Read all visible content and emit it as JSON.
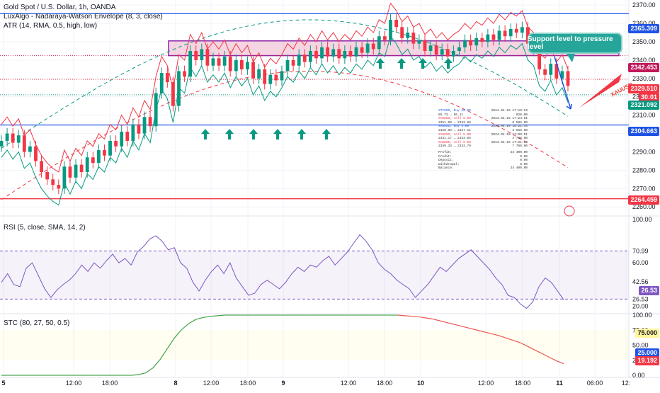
{
  "legend": {
    "title": "Gold Spot / U.S. Dollar, 1h, OANDA",
    "indicator1": "LuxAlgo - Nadaraya-Watson Envelope (8, 3, close)",
    "indicator2": "ATR (14, RMA, 0.5, high, low)",
    "rsi": "RSI (5, close, SMA, 14, 2)",
    "stc": "STC (80, 27, 50, 0.5)"
  },
  "annotation": {
    "callout": "Support level to pressure level",
    "symbol": "XAUUSD"
  },
  "price_tags": {
    "level_top": "2365.309",
    "current_upper": "2342.453",
    "current": "2329.510",
    "countdown": "30:01",
    "lower": "2321.092",
    "support": "2304.663",
    "bottom": "2264.459",
    "rsi_value": "26.53",
    "stc_75": "75.000",
    "stc_25": "25.000",
    "stc_value": "19.192"
  },
  "report": [
    [
      "XTIUSD, buy 20.00",
      "2024.04.10 17:19:23"
    ],
    [
      "85.73 → 86.11",
      "820.00"
    ],
    [
      "XAUUSD, sell 6.00",
      "2024.04.10 17:24:51"
    ],
    [
      "2351.00 → 2333.69",
      "8 505.00"
    ],
    [
      "XAUUSD, buy 5.00",
      "2024.04.10 18:21:44"
    ],
    [
      "2320.00 → 2327.11",
      "3 555.00"
    ],
    [
      "XAUUSD, sell 5.00",
      "2024.04.10 17:09:51"
    ],
    [
      "2341.17 → 2333.65",
      "3 760.00"
    ],
    [
      "XAUUSD, sell 5.00",
      "2024.04.10 17:21:04"
    ],
    [
      "2349.33 → 2333.79",
      "7 760.00"
    ],
    [
      "Profit:",
      "24 400.00"
    ],
    [
      "Credit:",
      "0.00"
    ],
    [
      "Deposit:",
      "0.00"
    ],
    [
      "Withdrawal:",
      "0.00"
    ],
    [
      "Balance:",
      "24 400.00"
    ]
  ],
  "chart_data": [
    {
      "type": "candlestick",
      "title": "Gold Spot / U.S. Dollar, 1h, OANDA",
      "ylim": [
        2257,
        2372
      ],
      "yticks": [
        2370,
        2360,
        2350,
        2340,
        2330,
        2320,
        2310,
        2300,
        2290,
        2280,
        2270,
        2260
      ],
      "xticks": [
        "5",
        "12:00",
        "18:00",
        "8",
        "12:00",
        "18:00",
        "9",
        "12:00",
        "18:00",
        "10",
        "12:00",
        "18:00",
        "11",
        "06:00",
        "12:"
      ],
      "colors": {
        "up": "#089981",
        "down": "#f23645",
        "envelope_band": "#f23645",
        "atr_band": "#089981",
        "line": "#1e53e5",
        "zone": "#c2185b"
      },
      "closes": [
        2296,
        2300,
        2295,
        2299,
        2290,
        2293,
        2285,
        2279,
        2275,
        2272,
        2270,
        2282,
        2276,
        2283,
        2279,
        2287,
        2284,
        2291,
        2288,
        2296,
        2293,
        2301,
        2296,
        2305,
        2300,
        2309,
        2304,
        2322,
        2333,
        2328,
        2315,
        2334,
        2331,
        2345,
        2340,
        2346,
        2337,
        2341,
        2337,
        2342,
        2334,
        2340,
        2335,
        2339,
        2330,
        2335,
        2327,
        2332,
        2329,
        2334,
        2340,
        2337,
        2343,
        2339,
        2345,
        2341,
        2347,
        2342,
        2346,
        2341,
        2345,
        2342,
        2347,
        2344,
        2349,
        2346,
        2353,
        2351,
        2362,
        2358,
        2352,
        2355,
        2349,
        2351,
        2345,
        2348,
        2343,
        2346,
        2342,
        2345,
        2347,
        2351,
        2348,
        2352,
        2350,
        2354,
        2351,
        2356,
        2353,
        2357,
        2355,
        2358,
        2349,
        2346,
        2335,
        2332,
        2338,
        2330,
        2334,
        2326
      ],
      "horizontal_levels": [
        2365.309,
        2304.663,
        2264.459
      ],
      "zone": [
        2342.453,
        2350.5
      ],
      "arrow_signals": "green up arrows under support and inside the zone"
    },
    {
      "type": "line",
      "name": "RSI",
      "ylim": [
        15,
        100
      ],
      "yticks": [
        100.0,
        70.99,
        60.0,
        42.56,
        26.53,
        20.0
      ],
      "bands": [
        70.99,
        26.53
      ],
      "values": [
        42,
        50,
        40,
        38,
        55,
        60,
        48,
        36,
        28,
        35,
        40,
        44,
        50,
        58,
        52,
        60,
        55,
        62,
        68,
        60,
        64,
        58,
        70,
        75,
        82,
        85,
        80,
        72,
        74,
        60,
        55,
        42,
        34,
        44,
        52,
        58,
        50,
        60,
        46,
        38,
        30,
        32,
        40,
        44,
        40,
        36,
        42,
        50,
        56,
        52,
        58,
        56,
        62,
        66,
        58,
        64,
        70,
        78,
        86,
        80,
        72,
        60,
        54,
        50,
        44,
        40,
        36,
        28,
        34,
        40,
        48,
        56,
        52,
        58,
        64,
        68,
        72,
        66,
        60,
        54,
        46,
        40,
        30,
        28,
        22,
        18,
        24,
        38,
        46,
        42,
        34,
        26
      ]
    },
    {
      "type": "line",
      "name": "STC",
      "ylim": [
        0,
        100
      ],
      "yticks": [
        100.0,
        75.0,
        50.0,
        25.0,
        0.0
      ],
      "values": [
        0,
        0,
        0,
        0,
        0,
        0,
        0,
        0,
        0,
        0,
        0,
        0,
        0,
        0,
        0,
        0,
        0,
        0,
        0,
        1,
        4,
        12,
        26,
        44,
        62,
        76,
        86,
        93,
        96,
        98,
        99,
        100,
        100,
        100,
        100,
        100,
        100,
        100,
        100,
        100,
        100,
        100,
        100,
        100,
        100,
        100,
        100,
        100,
        100,
        100,
        100,
        100,
        100,
        100,
        100,
        100,
        99,
        98,
        97,
        95,
        93,
        90,
        87,
        84,
        81,
        78,
        75,
        72,
        69,
        66,
        62,
        58,
        54,
        48,
        42,
        36,
        30,
        24,
        19.192
      ]
    }
  ],
  "time_axis_labels": [
    "5",
    "12:00",
    "18:00",
    "8",
    "12:00",
    "18:00",
    "9",
    "12:00",
    "18:00",
    "10",
    "12:00",
    "18:00",
    "11",
    "06:00",
    "12:"
  ]
}
